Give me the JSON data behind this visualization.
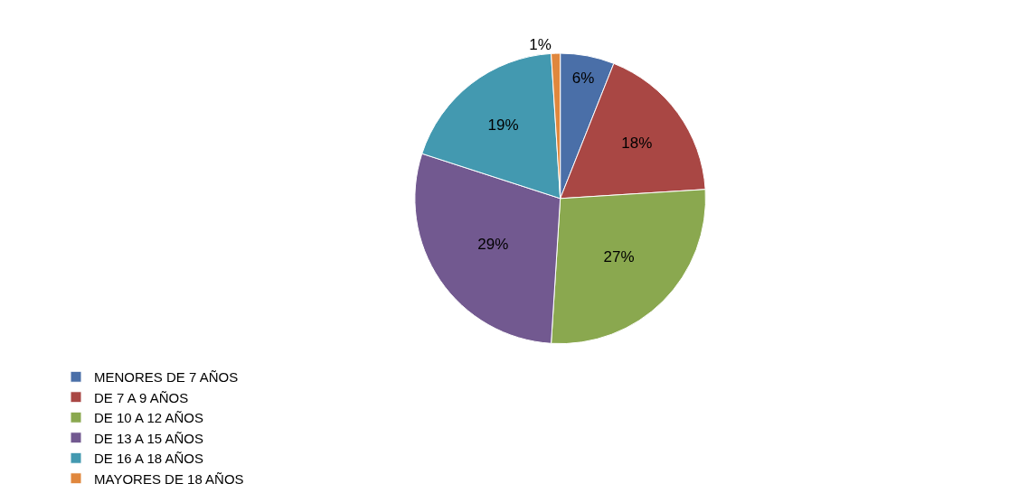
{
  "chart_data": {
    "type": "pie",
    "categories": [
      "MENORES DE 7 AÑOS",
      "DE 7 A 9 AÑOS",
      "DE 10 A 12 AÑOS",
      "DE 13 A 15 AÑOS",
      "DE 16 A 18 AÑOS",
      "MAYORES DE 18 AÑOS"
    ],
    "values": [
      6,
      18,
      27,
      29,
      19,
      1
    ],
    "value_labels": [
      "6%",
      "18%",
      "27%",
      "29%",
      "19%",
      "1%"
    ],
    "colors": [
      "#4a6fa8",
      "#a94744",
      "#8aa84f",
      "#725990",
      "#4399b0",
      "#e0873d"
    ],
    "legend": "bottom"
  }
}
